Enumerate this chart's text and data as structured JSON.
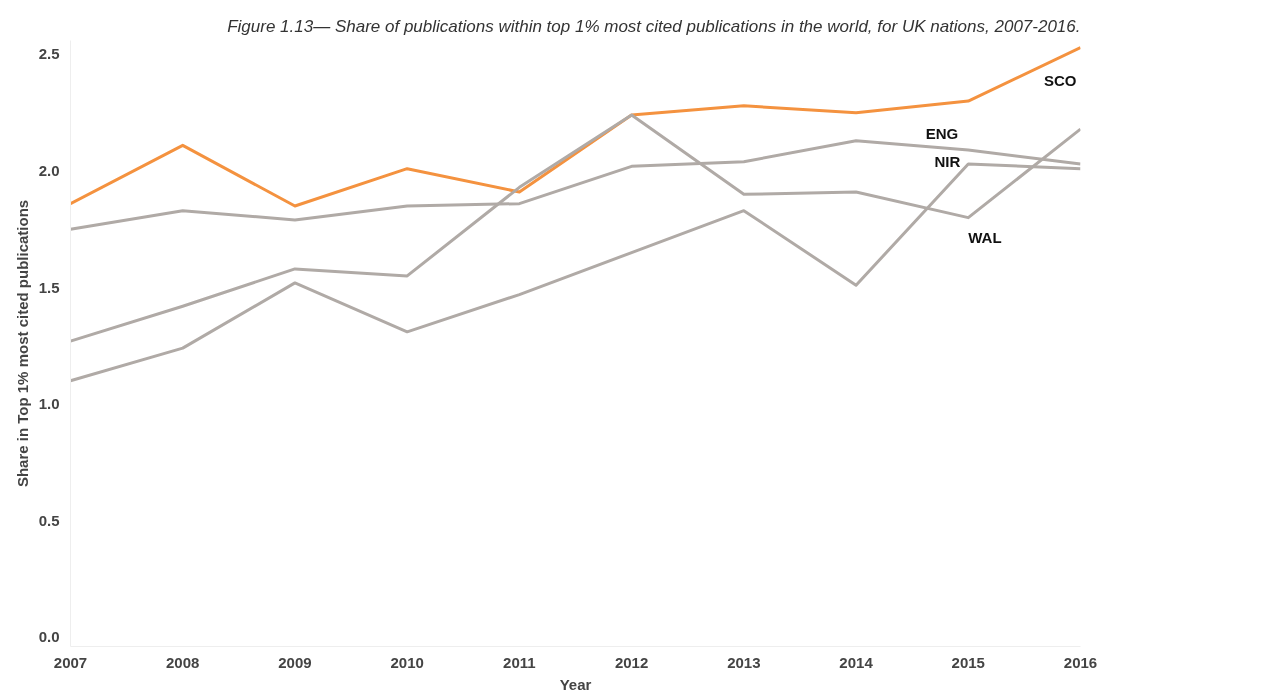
{
  "chart_data": {
    "type": "line",
    "title": "Figure 1.13— Share of publications within top 1% most cited publications in the world, for UK nations, 2007-2016.",
    "xlabel": "Year",
    "ylabel": "Share in Top 1% most cited publications",
    "categories": [
      "2007",
      "2008",
      "2009",
      "2010",
      "2011",
      "2012",
      "2013",
      "2014",
      "2015",
      "2016"
    ],
    "series": [
      {
        "name": "SCO",
        "color": "#f4923f",
        "values": [
          1.86,
          2.11,
          1.85,
          2.01,
          1.91,
          2.24,
          2.28,
          2.25,
          2.3,
          2.53
        ]
      },
      {
        "name": "ENG",
        "color": "#b0aaa6",
        "values": [
          1.75,
          1.83,
          1.79,
          1.85,
          1.86,
          2.02,
          2.04,
          2.13,
          2.09,
          2.03
        ]
      },
      {
        "name": "NIR",
        "color": "#b0aaa6",
        "values": [
          1.1,
          1.24,
          1.52,
          1.31,
          1.47,
          1.65,
          1.83,
          1.51,
          2.03,
          2.01
        ]
      },
      {
        "name": "WAL",
        "color": "#b0aaa6",
        "values": [
          1.27,
          1.42,
          1.58,
          1.55,
          1.93,
          2.24,
          1.9,
          1.91,
          1.8,
          2.18
        ]
      }
    ],
    "ylim": [
      -0.04,
      2.56
    ],
    "yticks": [
      {
        "value": 0,
        "label": "0.0"
      },
      0.5,
      {
        "value": 1,
        "label": "1.0"
      },
      1.5,
      {
        "value": 2,
        "label": "2.0"
      },
      2.5
    ],
    "grid": false,
    "marker": "none",
    "line_style": "solid"
  }
}
